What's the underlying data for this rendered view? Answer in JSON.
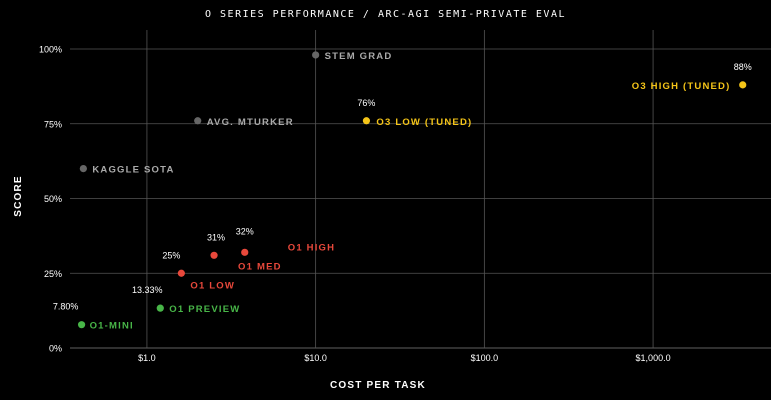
{
  "chart_data": {
    "type": "scatter",
    "title": "O SERIES PERFORMANCE / ARC-AGI SEMI-PRIVATE EVAL",
    "xlabel": "COST PER TASK",
    "ylabel": "SCORE",
    "x_scale": "log",
    "xlim": [
      0.35,
      5000
    ],
    "ylim": [
      0,
      100
    ],
    "x_ticks": [
      {
        "value": 1,
        "label": "$1.0"
      },
      {
        "value": 10,
        "label": "$10.0"
      },
      {
        "value": 100,
        "label": "$100.0"
      },
      {
        "value": 1000,
        "label": "$1,000.0"
      }
    ],
    "y_ticks": [
      {
        "value": 0,
        "label": "0%"
      },
      {
        "value": 25,
        "label": "25%"
      },
      {
        "value": 50,
        "label": "50%"
      },
      {
        "value": 75,
        "label": "75%"
      },
      {
        "value": 100,
        "label": "100%"
      }
    ],
    "grid": true,
    "colors": {
      "background": "#000000",
      "grid": "#555555",
      "baseline": "#808080",
      "o3": "#f5c518",
      "o1": "#e8483b",
      "mini": "#48b648",
      "human": "#666666"
    },
    "points": [
      {
        "name": "O1-MINI",
        "x": 0.41,
        "y": 7.8,
        "value_label": "7.80%",
        "color_key": "mini"
      },
      {
        "name": "O1 PREVIEW",
        "x": 1.2,
        "y": 13.33,
        "value_label": "13.33%",
        "color_key": "mini"
      },
      {
        "name": "O1 LOW",
        "x": 1.6,
        "y": 25,
        "value_label": "25%",
        "color_key": "o1"
      },
      {
        "name": "O1 MED",
        "x": 2.5,
        "y": 31,
        "value_label": "31%",
        "color_key": "o1"
      },
      {
        "name": "O1 HIGH",
        "x": 3.8,
        "y": 32,
        "value_label": "32%",
        "color_key": "o1"
      },
      {
        "name": "O3 LOW (TUNED)",
        "x": 20,
        "y": 76,
        "value_label": "76%",
        "color_key": "o3"
      },
      {
        "name": "O3 HIGH (TUNED)",
        "x": 3400,
        "y": 88,
        "value_label": "88%",
        "color_key": "o3"
      },
      {
        "name": "KAGGLE SOTA",
        "x": 0.42,
        "y": 60,
        "value_label": "",
        "color_key": "human"
      },
      {
        "name": "AVG. MTURKER",
        "x": 2.0,
        "y": 76,
        "value_label": "",
        "color_key": "human"
      },
      {
        "name": "STEM GRAD",
        "x": 10,
        "y": 98,
        "value_label": "",
        "color_key": "human"
      }
    ]
  }
}
